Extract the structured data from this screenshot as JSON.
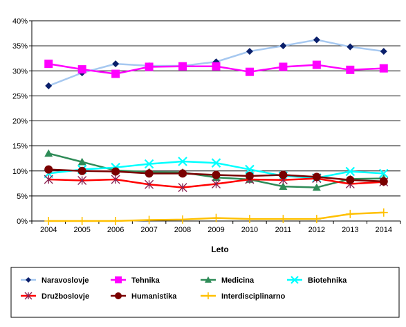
{
  "chart_data": {
    "type": "line",
    "x": [
      "2004",
      "2005",
      "2006",
      "2007",
      "2008",
      "2009",
      "2010",
      "2011",
      "2012",
      "2013",
      "2014"
    ],
    "xlabel": "Leto",
    "ylabel": "",
    "ylim": [
      0,
      40
    ],
    "yticks": [
      "0%",
      "5%",
      "10%",
      "15%",
      "20%",
      "25%",
      "30%",
      "35%",
      "40%"
    ],
    "grid": "horizontal",
    "legend_position": "bottom",
    "series": [
      {
        "name": "Naravoslovje",
        "color": "#a6c8f0",
        "marker": "diamond",
        "marker_color": "#0a1f6b",
        "values": [
          27.0,
          29.6,
          31.4,
          31.0,
          31.0,
          31.8,
          33.9,
          35.0,
          36.2,
          34.8,
          33.9
        ]
      },
      {
        "name": "Tehnika",
        "color": "#ff00ff",
        "marker": "square",
        "marker_color": "#ff00ff",
        "values": [
          31.4,
          30.3,
          29.4,
          30.8,
          30.9,
          30.9,
          29.8,
          30.8,
          31.2,
          30.2,
          30.5
        ]
      },
      {
        "name": "Medicina",
        "color": "#2e8b57",
        "marker": "triangle",
        "marker_color": "#2e8b57",
        "values": [
          13.5,
          11.8,
          10.1,
          9.8,
          9.7,
          8.7,
          8.3,
          6.9,
          6.7,
          8.4,
          8.5
        ]
      },
      {
        "name": "Biotehnika",
        "color": "#00ffff",
        "marker": "x",
        "marker_color": "#00ffff",
        "values": [
          9.5,
          10.3,
          10.7,
          11.4,
          11.9,
          11.6,
          10.3,
          9.0,
          8.6,
          9.9,
          9.5
        ]
      },
      {
        "name": "Družboslovje",
        "color": "#ff0000",
        "marker": "asterisk",
        "marker_color": "#8b2252",
        "values": [
          8.3,
          8.1,
          8.3,
          7.3,
          6.7,
          7.4,
          8.3,
          8.2,
          8.5,
          7.4,
          7.8
        ]
      },
      {
        "name": "Humanistika",
        "color": "#7a0000",
        "marker": "circle",
        "marker_color": "#7a0000",
        "values": [
          10.3,
          10.0,
          9.9,
          9.5,
          9.5,
          9.2,
          9.0,
          9.2,
          8.8,
          8.2,
          7.9
        ]
      },
      {
        "name": "Interdisciplinarno",
        "color": "#ffc000",
        "marker": "plus",
        "marker_color": "#ffc000",
        "values": [
          0.0,
          0.0,
          0.0,
          0.2,
          0.3,
          0.6,
          0.4,
          0.4,
          0.4,
          1.4,
          1.7
        ]
      }
    ]
  }
}
